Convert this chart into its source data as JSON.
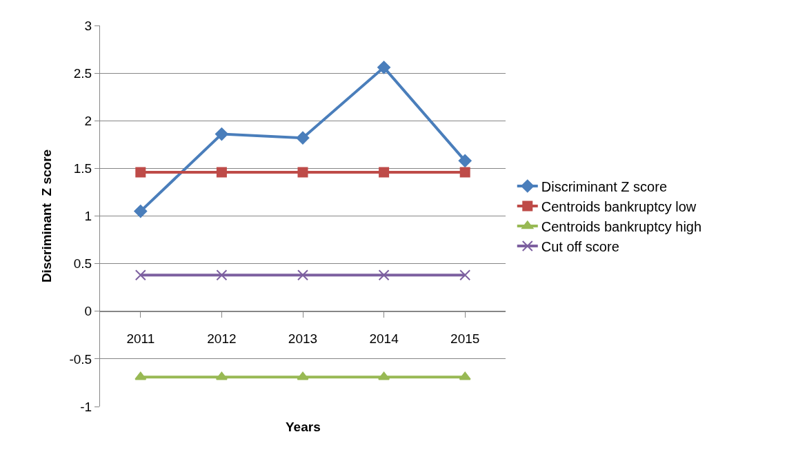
{
  "chart_data": {
    "type": "line",
    "xlabel": "Years",
    "ylabel": "Discriminant  Z score",
    "categories": [
      "2011",
      "2012",
      "2013",
      "2014",
      "2015"
    ],
    "series": [
      {
        "name": "Discriminant Z score",
        "color": "#4a7ebb",
        "marker": "diamond",
        "values": [
          1.05,
          1.86,
          1.82,
          2.56,
          1.58
        ]
      },
      {
        "name": "Centroids bankruptcy low",
        "color": "#be4b48",
        "marker": "square",
        "values": [
          1.46,
          1.46,
          1.46,
          1.46,
          1.46
        ]
      },
      {
        "name": "Centroids bankruptcy high",
        "color": "#98b954",
        "marker": "triangle",
        "values": [
          -0.69,
          -0.69,
          -0.69,
          -0.69,
          -0.69
        ]
      },
      {
        "name": "Cut off score",
        "color": "#7d60a0",
        "marker": "cross",
        "values": [
          0.38,
          0.38,
          0.38,
          0.38,
          0.38
        ]
      }
    ],
    "ylim": [
      -1,
      3
    ],
    "yticks": [
      -1,
      -0.5,
      0,
      0.5,
      1,
      1.5,
      2,
      2.5,
      3
    ],
    "grid": "y",
    "legend": "right",
    "line_style": "solid"
  }
}
